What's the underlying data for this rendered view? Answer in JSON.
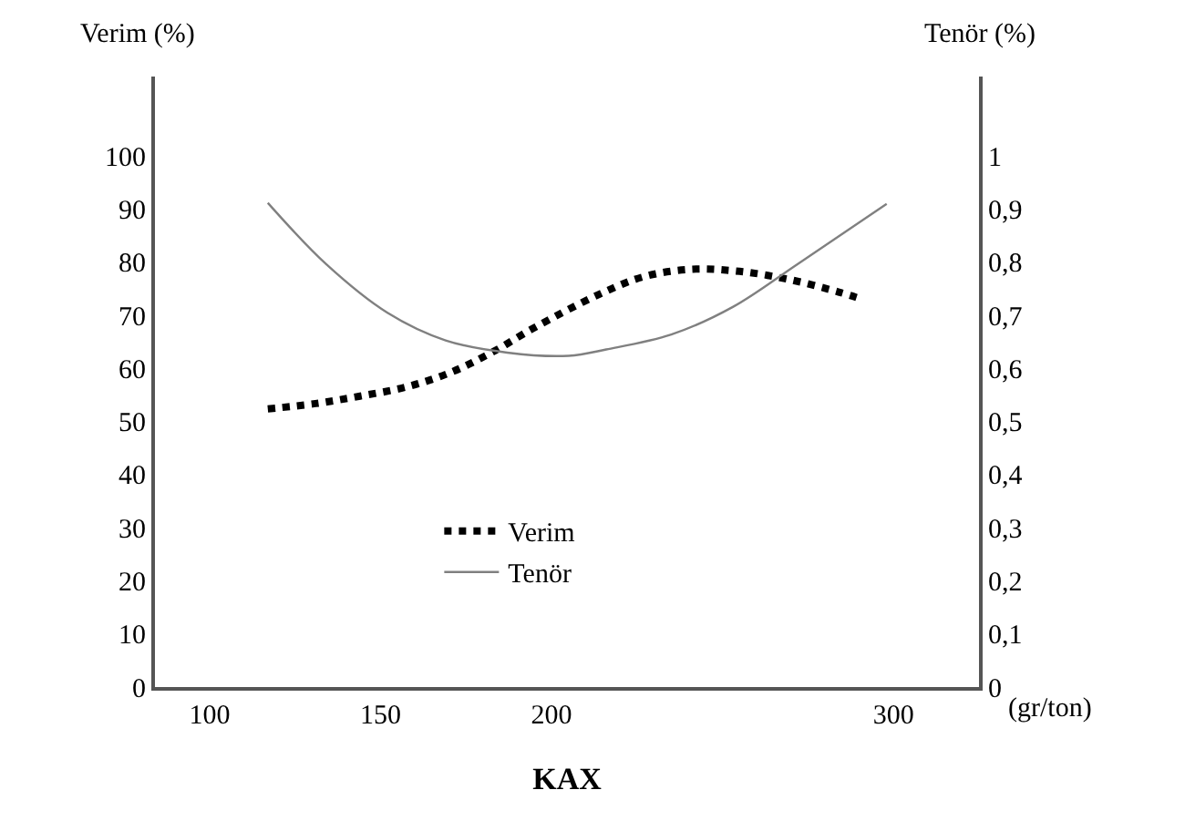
{
  "chart_data": {
    "type": "line",
    "title": "KAX",
    "xlabel": "(gr/ton)",
    "ylabel": "Verim (%)",
    "y2label": "Tenör (%)",
    "xlim": [
      84,
      325
    ],
    "xticks": [
      100,
      150,
      200,
      300
    ],
    "ylim": [
      0,
      115
    ],
    "yticks": [
      0,
      10,
      20,
      30,
      40,
      50,
      60,
      70,
      80,
      90,
      100
    ],
    "y2lim": [
      0,
      1.15
    ],
    "y2ticks": [
      0,
      {
        "value": 0.1,
        "label": "0,1"
      },
      {
        "value": 0.2,
        "label": "0,2"
      },
      {
        "value": 0.3,
        "label": "0,3"
      },
      {
        "value": 0.4,
        "label": "0,4"
      },
      {
        "value": 0.5,
        "label": "0,5"
      },
      {
        "value": 0.6,
        "label": "0,6"
      },
      {
        "value": 0.7,
        "label": "0,7"
      },
      {
        "value": 0.8,
        "label": "0,8"
      },
      {
        "value": 0.9,
        "label": "0,9"
      },
      1
    ],
    "grid": false,
    "legend": "bottom",
    "marker": "none",
    "series": [
      {
        "name": "Verim",
        "color": "#000000",
        "line_style": "dotted",
        "x": [
          117,
          131,
          144,
          158,
          171,
          183,
          195,
          214,
          227,
          241,
          255,
          270,
          284,
          291
        ],
        "values": [
          52.4,
          53.4,
          54.8,
          56.6,
          59.4,
          63.2,
          67.7,
          74.0,
          77.3,
          78.7,
          78.3,
          76.7,
          74.4,
          73.0
        ]
      },
      {
        "name": "Tenör",
        "color": "#808080",
        "line_style": "solid",
        "axis": "y2",
        "x": [
          117,
          134,
          152,
          169,
          187,
          205,
          216,
          235,
          253,
          272,
          298
        ],
        "values": [
          0.912,
          0.797,
          0.705,
          0.653,
          0.63,
          0.624,
          0.636,
          0.664,
          0.716,
          0.797,
          0.91
        ]
      }
    ]
  }
}
